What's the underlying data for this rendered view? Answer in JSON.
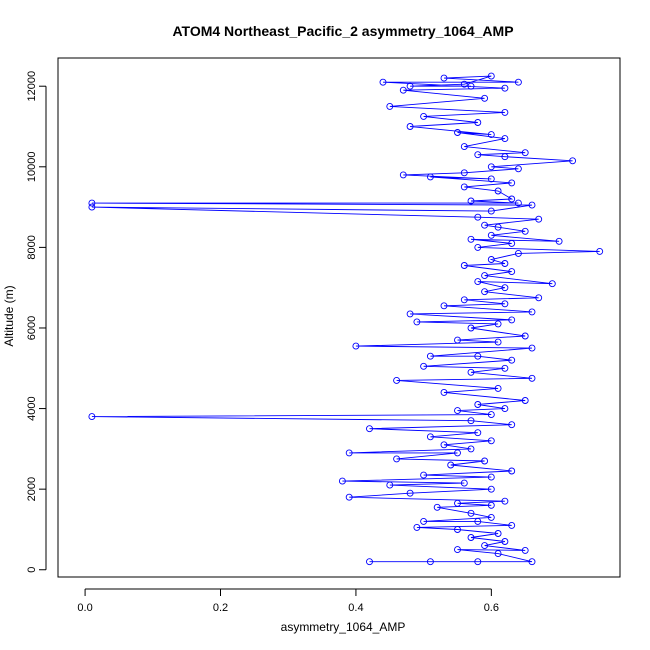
{
  "chart_data": {
    "type": "line",
    "title": "ATOM4 Northeast_Pacific_2 asymmetry_1064_AMP",
    "xlabel": "asymmetry_1064_AMP",
    "ylabel": "Altitude (m)",
    "xlim": [
      -0.04,
      0.79
    ],
    "ylim": [
      -180,
      12700
    ],
    "x_ticks": [
      0.0,
      0.2,
      0.4,
      0.6
    ],
    "y_ticks": [
      0,
      2000,
      4000,
      6000,
      8000,
      10000,
      12000
    ],
    "x_tick_labels": [
      "0.0",
      "0.2",
      "0.4",
      "0.6"
    ],
    "y_tick_labels": [
      "0",
      "2000",
      "4000",
      "6000",
      "8000",
      "10000",
      "12000"
    ],
    "marker": "open-circle",
    "grid": false,
    "legend": "none",
    "series": [
      {
        "color": "#0000ff",
        "points": [
          [
            0.42,
            200
          ],
          [
            0.51,
            200
          ],
          [
            0.58,
            200
          ],
          [
            0.66,
            200
          ],
          [
            0.61,
            400
          ],
          [
            0.55,
            500
          ],
          [
            0.65,
            480
          ],
          [
            0.59,
            600
          ],
          [
            0.62,
            700
          ],
          [
            0.57,
            800
          ],
          [
            0.61,
            900
          ],
          [
            0.55,
            1000
          ],
          [
            0.49,
            1050
          ],
          [
            0.63,
            1100
          ],
          [
            0.58,
            1200
          ],
          [
            0.5,
            1200
          ],
          [
            0.6,
            1300
          ],
          [
            0.57,
            1400
          ],
          [
            0.52,
            1550
          ],
          [
            0.6,
            1600
          ],
          [
            0.55,
            1650
          ],
          [
            0.62,
            1700
          ],
          [
            0.39,
            1800
          ],
          [
            0.48,
            1900
          ],
          [
            0.6,
            2000
          ],
          [
            0.45,
            2100
          ],
          [
            0.56,
            2150
          ],
          [
            0.38,
            2200
          ],
          [
            0.6,
            2300
          ],
          [
            0.5,
            2350
          ],
          [
            0.63,
            2450
          ],
          [
            0.54,
            2600
          ],
          [
            0.59,
            2700
          ],
          [
            0.46,
            2750
          ],
          [
            0.55,
            2900
          ],
          [
            0.39,
            2900
          ],
          [
            0.57,
            3000
          ],
          [
            0.53,
            3100
          ],
          [
            0.6,
            3200
          ],
          [
            0.51,
            3300
          ],
          [
            0.58,
            3400
          ],
          [
            0.42,
            3500
          ],
          [
            0.63,
            3600
          ],
          [
            0.57,
            3700
          ],
          [
            0.01,
            3800
          ],
          [
            0.6,
            3850
          ],
          [
            0.55,
            3950
          ],
          [
            0.62,
            4000
          ],
          [
            0.58,
            4100
          ],
          [
            0.65,
            4200
          ],
          [
            0.53,
            4400
          ],
          [
            0.61,
            4500
          ],
          [
            0.46,
            4700
          ],
          [
            0.66,
            4750
          ],
          [
            0.57,
            4900
          ],
          [
            0.62,
            5000
          ],
          [
            0.5,
            5050
          ],
          [
            0.63,
            5200
          ],
          [
            0.58,
            5300
          ],
          [
            0.51,
            5300
          ],
          [
            0.66,
            5500
          ],
          [
            0.4,
            5550
          ],
          [
            0.61,
            5650
          ],
          [
            0.55,
            5700
          ],
          [
            0.65,
            5800
          ],
          [
            0.57,
            6000
          ],
          [
            0.61,
            6100
          ],
          [
            0.49,
            6150
          ],
          [
            0.63,
            6200
          ],
          [
            0.48,
            6350
          ],
          [
            0.66,
            6400
          ],
          [
            0.53,
            6550
          ],
          [
            0.62,
            6600
          ],
          [
            0.56,
            6700
          ],
          [
            0.67,
            6750
          ],
          [
            0.59,
            6900
          ],
          [
            0.62,
            7000
          ],
          [
            0.58,
            7150
          ],
          [
            0.69,
            7100
          ],
          [
            0.59,
            7300
          ],
          [
            0.63,
            7400
          ],
          [
            0.56,
            7550
          ],
          [
            0.62,
            7600
          ],
          [
            0.6,
            7700
          ],
          [
            0.64,
            7850
          ],
          [
            0.76,
            7900
          ],
          [
            0.58,
            8000
          ],
          [
            0.63,
            8100
          ],
          [
            0.57,
            8200
          ],
          [
            0.7,
            8150
          ],
          [
            0.6,
            8300
          ],
          [
            0.65,
            8400
          ],
          [
            0.61,
            8500
          ],
          [
            0.59,
            8550
          ],
          [
            0.67,
            8700
          ],
          [
            0.58,
            8750
          ],
          [
            0.01,
            9000
          ],
          [
            0.6,
            8900
          ],
          [
            0.66,
            9050
          ],
          [
            0.01,
            9100
          ],
          [
            0.64,
            9100
          ],
          [
            0.57,
            9150
          ],
          [
            0.63,
            9200
          ],
          [
            0.61,
            9400
          ],
          [
            0.56,
            9500
          ],
          [
            0.63,
            9600
          ],
          [
            0.51,
            9750
          ],
          [
            0.6,
            9700
          ],
          [
            0.47,
            9800
          ],
          [
            0.56,
            9850
          ],
          [
            0.64,
            9950
          ],
          [
            0.6,
            10000
          ],
          [
            0.72,
            10150
          ],
          [
            0.62,
            10250
          ],
          [
            0.58,
            10300
          ],
          [
            0.65,
            10350
          ],
          [
            0.56,
            10500
          ],
          [
            0.62,
            10700
          ],
          [
            0.55,
            10850
          ],
          [
            0.6,
            10800
          ],
          [
            0.48,
            11000
          ],
          [
            0.58,
            11100
          ],
          [
            0.5,
            11250
          ],
          [
            0.62,
            11350
          ],
          [
            0.45,
            11500
          ],
          [
            0.59,
            11700
          ],
          [
            0.47,
            11900
          ],
          [
            0.62,
            11950
          ],
          [
            0.44,
            12100
          ],
          [
            0.64,
            12100
          ],
          [
            0.53,
            12200
          ],
          [
            0.6,
            12250
          ],
          [
            0.56,
            12050
          ],
          [
            0.48,
            12000
          ],
          [
            0.57,
            12000
          ]
        ]
      }
    ]
  }
}
